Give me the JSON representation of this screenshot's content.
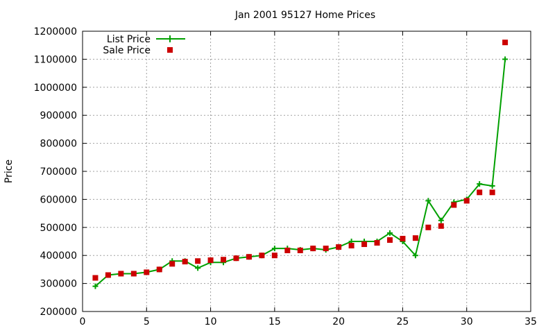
{
  "chart_data": {
    "type": "line",
    "title": "Jan 2001 95127 Home Prices",
    "xlabel": "",
    "ylabel": "Price",
    "xlim": [
      0,
      35
    ],
    "ylim": [
      200000,
      1200000
    ],
    "xticks": [
      0,
      5,
      10,
      15,
      20,
      25,
      30,
      35
    ],
    "yticks": [
      200000,
      300000,
      400000,
      500000,
      600000,
      700000,
      800000,
      900000,
      1000000,
      1100000,
      1200000
    ],
    "grid": true,
    "legend_position": "top-left",
    "x": [
      1,
      2,
      3,
      4,
      5,
      6,
      7,
      8,
      9,
      10,
      11,
      12,
      13,
      14,
      15,
      16,
      17,
      18,
      19,
      20,
      21,
      22,
      23,
      24,
      25,
      26,
      27,
      28,
      29,
      30,
      31,
      32,
      33
    ],
    "series": [
      {
        "name": "List Price",
        "style": "line-plus",
        "color": "#00a000",
        "values": [
          290000,
          330000,
          335000,
          335000,
          340000,
          350000,
          380000,
          380000,
          355000,
          375000,
          375000,
          390000,
          395000,
          400000,
          425000,
          425000,
          420000,
          425000,
          420000,
          430000,
          450000,
          450000,
          450000,
          480000,
          450000,
          400000,
          595000,
          525000,
          590000,
          600000,
          655000,
          648000,
          1100000
        ]
      },
      {
        "name": "Sale Price",
        "style": "square-markers",
        "color": "#cc0000",
        "values": [
          320000,
          330000,
          335000,
          335000,
          340000,
          350000,
          370000,
          378000,
          380000,
          383000,
          385000,
          390000,
          395000,
          400000,
          400000,
          418000,
          418000,
          425000,
          425000,
          430000,
          435000,
          440000,
          445000,
          455000,
          460000,
          462000,
          500000,
          505000,
          580000,
          595000,
          625000,
          625000,
          1160000
        ]
      }
    ]
  }
}
